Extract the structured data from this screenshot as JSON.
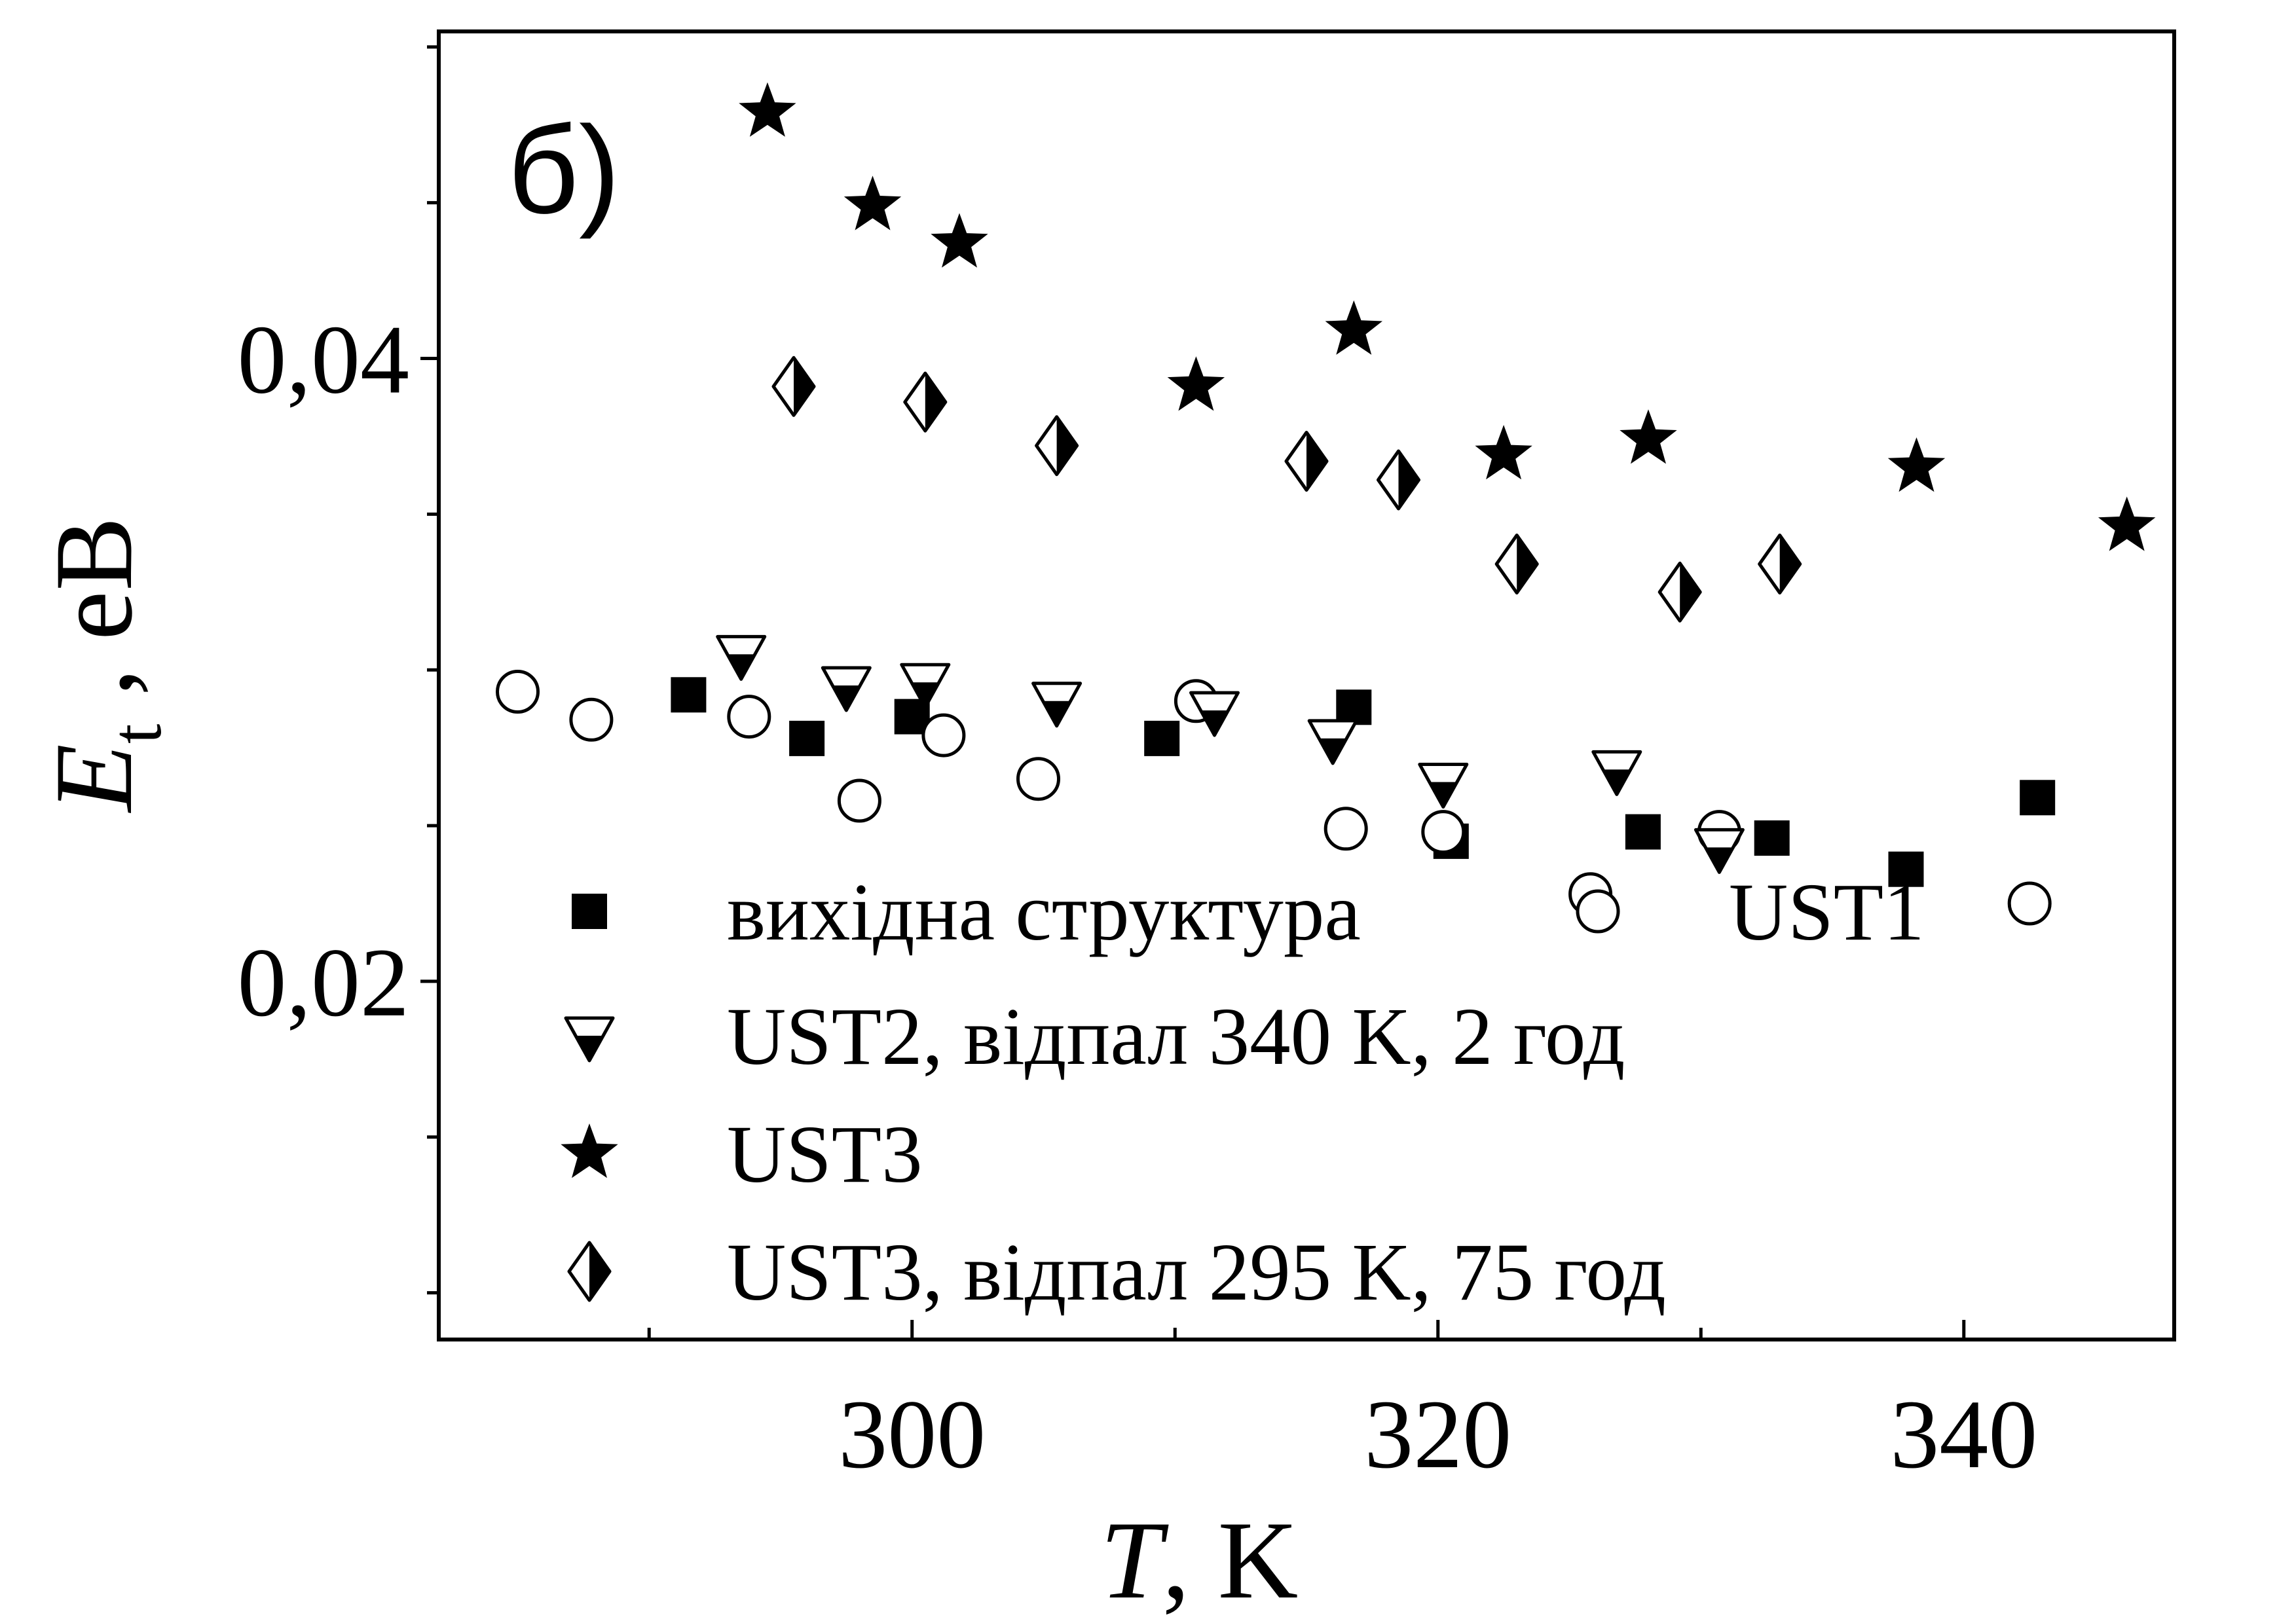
{
  "chart_data": {
    "type": "scatter",
    "panel_label": "б)",
    "xlabel": {
      "symbol": "T",
      "rest": ", K"
    },
    "ylabel": {
      "symbol": "E",
      "subscript": "t",
      "rest": " , eB"
    },
    "xlim": [
      282,
      348
    ],
    "ylim": [
      0.0085,
      0.0505
    ],
    "xticks": [
      300,
      320,
      340
    ],
    "xtick_labels": [
      "300",
      "320",
      "340"
    ],
    "yticks": [
      0.02,
      0.04
    ],
    "ytick_labels": [
      "0,02",
      "0,04"
    ],
    "grid": false,
    "legend_placement": "bottom-left",
    "series": [
      {
        "name": "вихідна структура",
        "marker": "square",
        "points": [
          [
            291.5,
            0.0292
          ],
          [
            296.0,
            0.0278
          ],
          [
            300.0,
            0.0285
          ],
          [
            309.5,
            0.0278
          ],
          [
            316.8,
            0.0288
          ],
          [
            320.5,
            0.0245
          ],
          [
            327.8,
            0.0248
          ],
          [
            332.7,
            0.0246
          ],
          [
            337.8,
            0.0236
          ],
          [
            342.8,
            0.0259
          ]
        ]
      },
      {
        "name": "UST1",
        "marker": "circle-open",
        "points": [
          [
            285.0,
            0.0293
          ],
          [
            287.8,
            0.0284
          ],
          [
            293.8,
            0.0285
          ],
          [
            298.0,
            0.0258
          ],
          [
            301.2,
            0.0279
          ],
          [
            304.8,
            0.0265
          ],
          [
            310.8,
            0.029
          ],
          [
            316.5,
            0.0249
          ],
          [
            320.2,
            0.0248
          ],
          [
            325.8,
            0.0228
          ],
          [
            330.7,
            0.0248
          ],
          [
            342.5,
            0.0225
          ]
        ]
      },
      {
        "name": "UST2, відпал 340 K, 2 год",
        "marker": "triangle-down-half",
        "points": [
          [
            293.5,
            0.0305
          ],
          [
            297.5,
            0.0295
          ],
          [
            300.5,
            0.0296
          ],
          [
            305.5,
            0.029
          ],
          [
            311.5,
            0.0287
          ],
          [
            316.0,
            0.0278
          ],
          [
            320.2,
            0.0264
          ],
          [
            326.8,
            0.0268
          ],
          [
            330.7,
            0.0243
          ]
        ]
      },
      {
        "name": "UST3",
        "marker": "star",
        "points": [
          [
            294.5,
            0.0479
          ],
          [
            298.5,
            0.0449
          ],
          [
            301.8,
            0.0437
          ],
          [
            310.8,
            0.0391
          ],
          [
            316.8,
            0.0409
          ],
          [
            322.5,
            0.0369
          ],
          [
            328.0,
            0.0374
          ],
          [
            338.2,
            0.0365
          ],
          [
            346.2,
            0.0346
          ]
        ]
      },
      {
        "name": "UST3, відпал 295 K, 75 год",
        "marker": "diamond-half",
        "points": [
          [
            295.5,
            0.0391
          ],
          [
            300.5,
            0.0386
          ],
          [
            305.5,
            0.0372
          ],
          [
            315.0,
            0.0367
          ],
          [
            318.5,
            0.0361
          ],
          [
            323.0,
            0.0334
          ],
          [
            329.2,
            0.0325
          ],
          [
            333.0,
            0.0334
          ]
        ]
      }
    ]
  }
}
